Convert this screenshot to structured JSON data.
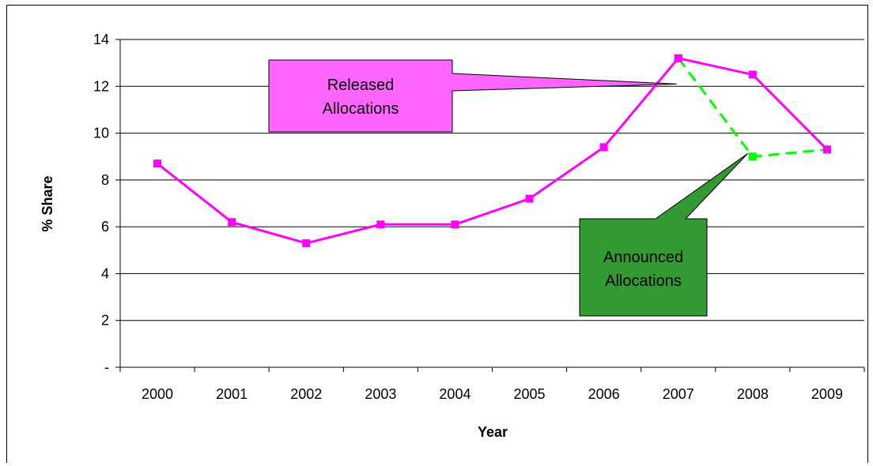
{
  "chart_data": {
    "type": "line",
    "xlabel": "Year",
    "ylabel": "% Share",
    "categories": [
      "2000",
      "2001",
      "2002",
      "2003",
      "2004",
      "2005",
      "2006",
      "2007",
      "2008",
      "2009"
    ],
    "ylim": [
      0,
      14
    ],
    "yticks": [
      0,
      2,
      4,
      6,
      8,
      10,
      12,
      14
    ],
    "ytick_labels": [
      "-",
      "2",
      "4",
      "6",
      "8",
      "10",
      "12",
      "14"
    ],
    "grid": true,
    "series": [
      {
        "id": "released",
        "name": "Released Allocations",
        "color": "#ff00ff",
        "dash": "solid",
        "marker": "square",
        "values": [
          8.7,
          6.2,
          5.3,
          6.1,
          6.1,
          7.2,
          9.4,
          13.2,
          12.5,
          9.3
        ]
      },
      {
        "id": "announced",
        "name": "Announced Allocations",
        "color": "#00ff00",
        "dash": "dashed",
        "marker": "square",
        "values": [
          null,
          null,
          null,
          null,
          null,
          null,
          null,
          13.2,
          9.0,
          9.3
        ]
      }
    ],
    "annotations": [
      {
        "id": "released",
        "lines": [
          "Released",
          "Allocations"
        ],
        "color": "#ff66ff",
        "points_to": {
          "x": "2007",
          "y": 12.1
        }
      },
      {
        "id": "announced",
        "lines": [
          "Announced",
          "Allocations"
        ],
        "color": "#339933",
        "points_to": {
          "x": "2008",
          "y": 9.0
        }
      }
    ]
  }
}
